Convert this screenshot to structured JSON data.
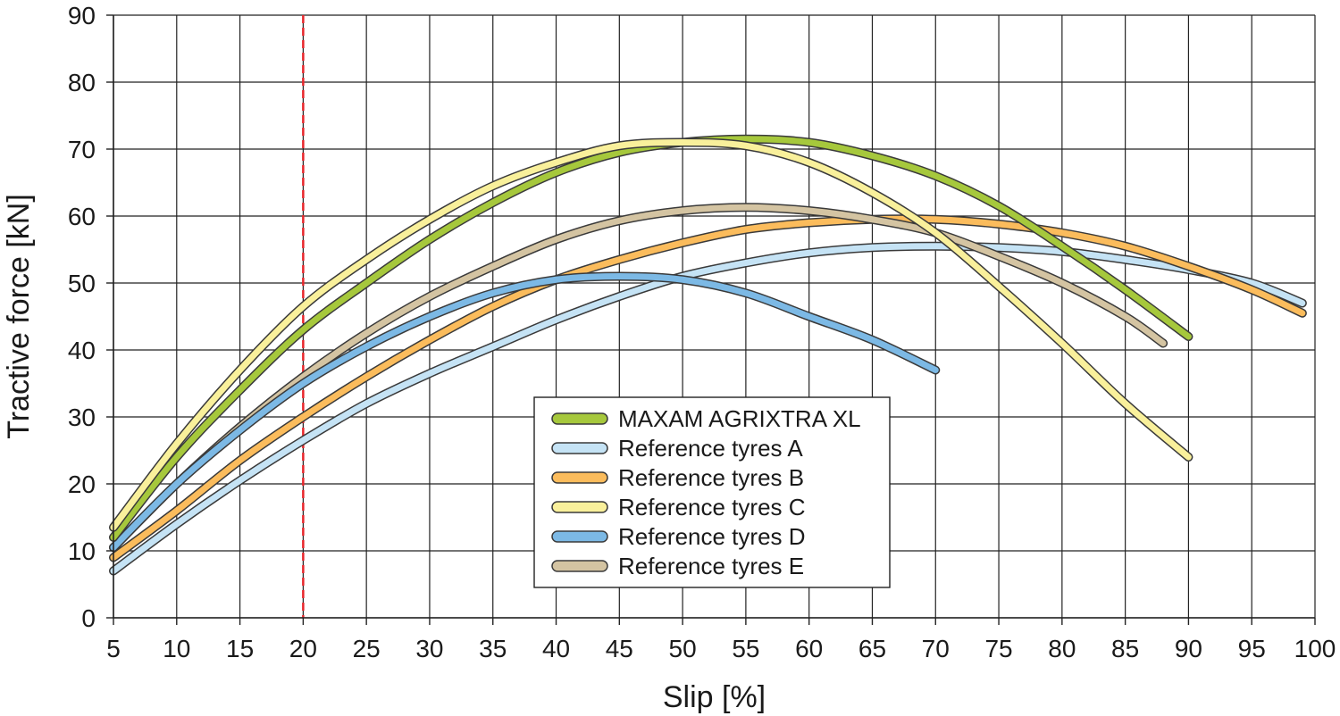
{
  "chart_data": {
    "type": "line",
    "xlabel": "Slip [%]",
    "ylabel": "Tractive force [kN]",
    "xlim": [
      5,
      100
    ],
    "ylim": [
      0,
      90
    ],
    "xticks": [
      5,
      10,
      15,
      20,
      25,
      30,
      35,
      40,
      45,
      50,
      55,
      60,
      65,
      70,
      75,
      80,
      85,
      90,
      95,
      100
    ],
    "yticks": [
      0,
      10,
      20,
      30,
      40,
      50,
      60,
      70,
      80,
      90
    ],
    "grid": true,
    "legend_position": "lower-center",
    "reference_line": {
      "x": 20,
      "color": "#e8262b",
      "style": "dashed"
    },
    "series": [
      {
        "name": "MAXAM AGRIXTRA XL",
        "color": "#a6c83c",
        "x": [
          5,
          10,
          15,
          20,
          25,
          30,
          35,
          40,
          45,
          50,
          55,
          60,
          65,
          70,
          75,
          80,
          85,
          90
        ],
        "y": [
          12,
          24,
          34,
          43,
          50,
          56.5,
          62,
          66.5,
          69.5,
          71,
          71.5,
          71,
          69,
          66,
          61.5,
          55.5,
          49,
          42
        ]
      },
      {
        "name": "Reference tyres A",
        "color": "#c5e3f5",
        "x": [
          5,
          10,
          15,
          20,
          25,
          30,
          35,
          40,
          45,
          50,
          55,
          60,
          65,
          70,
          75,
          80,
          85,
          90,
          95,
          99
        ],
        "y": [
          7,
          14,
          20.5,
          26.5,
          32,
          36.5,
          40.5,
          44.5,
          48,
          51,
          53,
          54.5,
          55.3,
          55.5,
          55.3,
          54.7,
          53.5,
          52,
          50,
          47
        ]
      },
      {
        "name": "Reference tyres B",
        "color": "#fbbc5c",
        "x": [
          5,
          10,
          15,
          20,
          25,
          30,
          35,
          40,
          45,
          50,
          55,
          60,
          65,
          70,
          75,
          80,
          85,
          90,
          95,
          99
        ],
        "y": [
          9,
          16,
          23.5,
          30,
          36,
          41.5,
          46.5,
          50.5,
          53.5,
          56,
          58,
          59,
          59.5,
          59.5,
          58.8,
          57.5,
          55.5,
          52.5,
          49,
          45.5
        ]
      },
      {
        "name": "Reference tyres C",
        "color": "#f9f09b",
        "x": [
          5,
          10,
          15,
          20,
          25,
          30,
          35,
          40,
          45,
          50,
          55,
          60,
          65,
          70,
          75,
          80,
          85,
          90
        ],
        "y": [
          13.5,
          26,
          37,
          46.5,
          53.5,
          59.5,
          64.5,
          68,
          70.5,
          71,
          70.5,
          68,
          63.5,
          57.5,
          49.5,
          41,
          32,
          24
        ]
      },
      {
        "name": "Reference tyres D",
        "color": "#7cb9e5",
        "x": [
          5,
          10,
          15,
          20,
          25,
          30,
          35,
          40,
          45,
          50,
          55,
          60,
          65,
          70
        ],
        "y": [
          10.5,
          20,
          28,
          35,
          40.5,
          45,
          48.5,
          50.5,
          51,
          50.5,
          48.5,
          45,
          41.5,
          37
        ]
      },
      {
        "name": "Reference tyres E",
        "color": "#d4c4a2",
        "x": [
          5,
          10,
          15,
          20,
          25,
          30,
          35,
          40,
          45,
          50,
          55,
          60,
          65,
          70,
          75,
          80,
          85,
          88
        ],
        "y": [
          10.5,
          20,
          28.5,
          36,
          42.5,
          48,
          52.5,
          56.5,
          59.3,
          60.8,
          61.3,
          60.8,
          59.5,
          57.5,
          54,
          50,
          45,
          41
        ]
      }
    ]
  }
}
